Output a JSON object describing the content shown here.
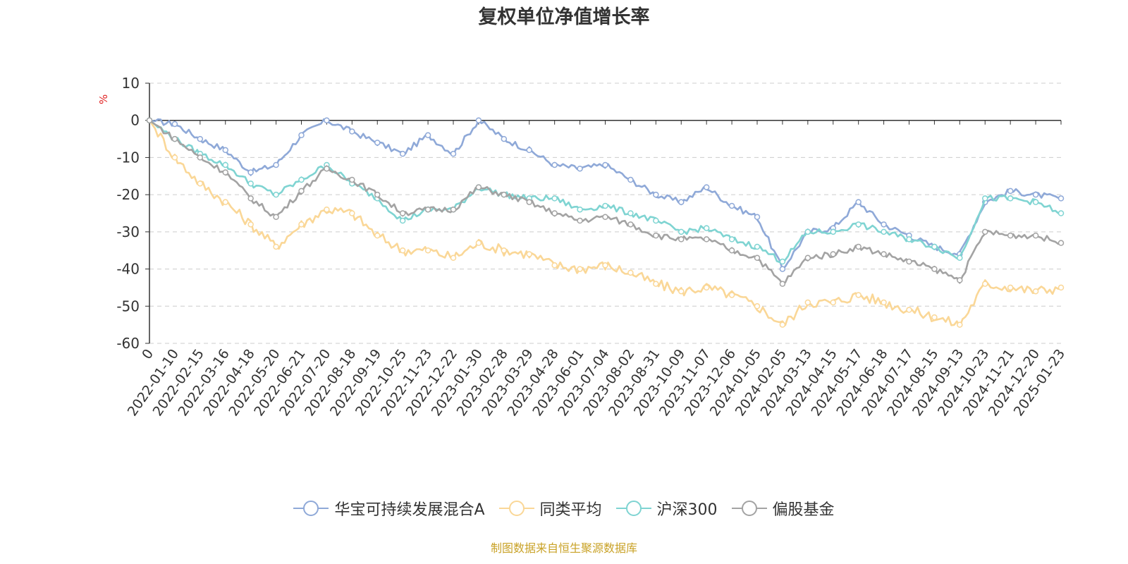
{
  "chart_data": {
    "type": "line",
    "title": "复权单位净值增长率",
    "ylabel": "%",
    "xlabel": "",
    "ylim": [
      -60,
      10
    ],
    "yticks": [
      10,
      0,
      -10,
      -20,
      -30,
      -40,
      -50,
      -60
    ],
    "grid": true,
    "legend_position": "bottom",
    "categories": [
      "0",
      "2022-01-10",
      "2022-02-15",
      "2022-03-16",
      "2022-04-18",
      "2022-05-20",
      "2022-06-21",
      "2022-07-20",
      "2022-08-18",
      "2022-09-19",
      "2022-10-25",
      "2022-11-23",
      "2022-12-22",
      "2023-01-30",
      "2023-02-28",
      "2023-03-29",
      "2023-04-28",
      "2023-06-01",
      "2023-07-04",
      "2023-08-02",
      "2023-08-31",
      "2023-10-09",
      "2023-11-07",
      "2023-12-06",
      "2024-01-05",
      "2024-02-05",
      "2024-03-13",
      "2024-04-15",
      "2024-05-17",
      "2024-06-18",
      "2024-07-17",
      "2024-08-15",
      "2024-09-13",
      "2024-10-23",
      "2024-11-21",
      "2024-12-20",
      "2025-01-23"
    ],
    "series": [
      {
        "name": "华宝可持续发展混合A",
        "color": "#8fa9d8",
        "values": [
          0,
          -1,
          -5,
          -8,
          -14,
          -12,
          -4,
          0,
          -3,
          -6,
          -9,
          -4,
          -9,
          0,
          -5,
          -8,
          -12,
          -13,
          -12,
          -16,
          -20,
          -22,
          -18,
          -23,
          -26,
          -40,
          -30,
          -29,
          -22,
          -28,
          -31,
          -34,
          -36,
          -22,
          -19,
          -20,
          -21
        ]
      },
      {
        "name": "同类平均",
        "color": "#fad797",
        "values": [
          0,
          -10,
          -17,
          -22,
          -28,
          -34,
          -28,
          -24,
          -25,
          -31,
          -35,
          -35,
          -37,
          -33,
          -35,
          -36,
          -39,
          -40,
          -39,
          -41,
          -44,
          -46,
          -45,
          -47,
          -50,
          -55,
          -49,
          -49,
          -47,
          -49,
          -51,
          -53,
          -55,
          -44,
          -45,
          -46,
          -45
        ]
      },
      {
        "name": "沪深300",
        "color": "#7fd4d2",
        "values": [
          0,
          -5,
          -9,
          -12,
          -17,
          -20,
          -16,
          -12,
          -17,
          -21,
          -27,
          -24,
          -24,
          -18,
          -20,
          -21,
          -21,
          -24,
          -23,
          -25,
          -27,
          -30,
          -29,
          -32,
          -34,
          -38,
          -30,
          -30,
          -28,
          -30,
          -32,
          -34,
          -37,
          -21,
          -21,
          -22,
          -25
        ]
      },
      {
        "name": "偏股基金",
        "color": "#a3a3a3",
        "values": [
          0,
          -5,
          -10,
          -14,
          -21,
          -26,
          -19,
          -13,
          -16,
          -20,
          -25,
          -24,
          -24,
          -18,
          -20,
          -22,
          -25,
          -27,
          -26,
          -28,
          -31,
          -32,
          -32,
          -35,
          -37,
          -44,
          -37,
          -36,
          -34,
          -36,
          -38,
          -40,
          -43,
          -30,
          -31,
          -31,
          -33
        ]
      }
    ]
  },
  "footer": {
    "source": "制图数据来自恒生聚源数据库"
  }
}
